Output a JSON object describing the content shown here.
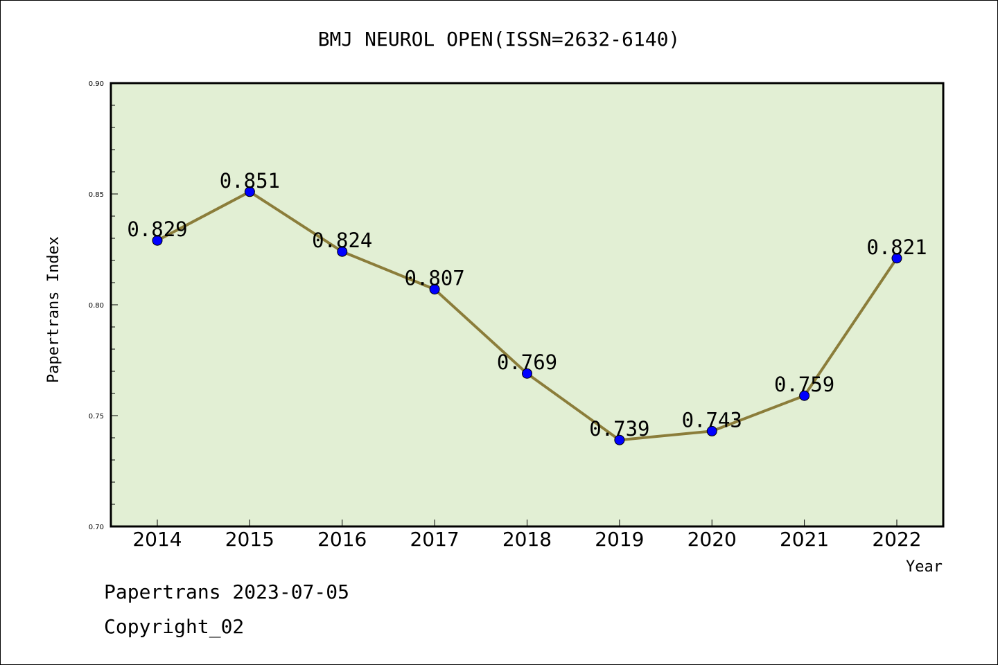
{
  "chart_data": {
    "type": "line",
    "title": "BMJ NEUROL OPEN(ISSN=2632-6140)",
    "xlabel": "Year",
    "ylabel": "Papertrans Index",
    "categories": [
      "2014",
      "2015",
      "2016",
      "2017",
      "2018",
      "2019",
      "2020",
      "2021",
      "2022"
    ],
    "values": [
      0.829,
      0.851,
      0.824,
      0.807,
      0.769,
      0.739,
      0.743,
      0.759,
      0.821
    ],
    "value_labels": [
      "0.829",
      "0.851",
      "0.824",
      "0.807",
      "0.769",
      "0.739",
      "0.743",
      "0.759",
      "0.821"
    ],
    "ylim": [
      0.7,
      0.9
    ],
    "yticks": [
      "0.70",
      "0.75",
      "0.80",
      "0.85",
      "0.90"
    ],
    "grid": false,
    "colors": {
      "plot_background": "#e2efd4",
      "line": "#8b7d3a",
      "marker": "#0000ff"
    }
  },
  "footer": {
    "line1": "Papertrans 2023-07-05",
    "line2": "Copyright_02"
  }
}
